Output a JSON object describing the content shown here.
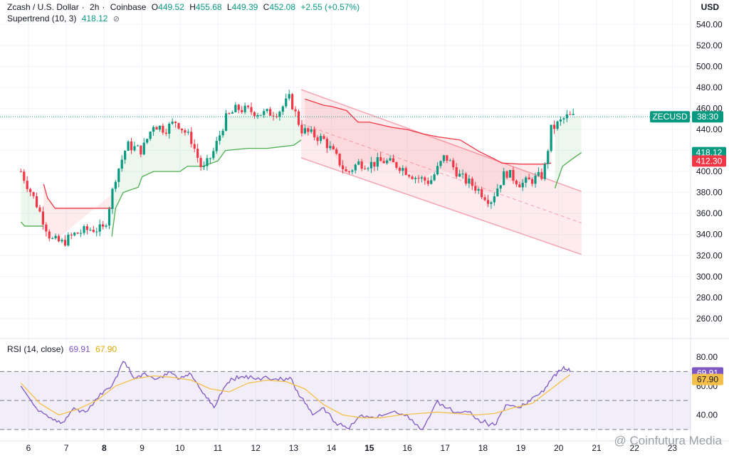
{
  "header": {
    "symbol": "Zcash / U.S. Dollar",
    "interval": "2h",
    "exchange": "Coinbase",
    "o_label": "O",
    "o": "449.52",
    "h_label": "H",
    "h": "455.68",
    "l_label": "L",
    "l": "449.39",
    "c_label": "C",
    "c": "452.08",
    "change": "+2.55 (+0.57%)",
    "currency": "USD"
  },
  "supertrend": {
    "label": "Supertrend (10, 3)",
    "value": "418.12",
    "eye_icon": "eye-off-icon"
  },
  "rsi": {
    "label": "RSI (14, close)",
    "value": "69.91",
    "ma": "67.90"
  },
  "badges": {
    "symbol_tag": "ZECUSD",
    "countdown": "38:30",
    "price_color": "#089981",
    "supertrend": "418.12",
    "supertrend_red": "412.30",
    "rsi_value": "69.91",
    "rsi_ma": "67.90"
  },
  "watermark": "@ Coinfutura Media",
  "colors": {
    "up": "#089981",
    "down": "#f23645",
    "supertrend_up": "#4caf50",
    "supertrend_down": "#f23645",
    "channel": "#f7a3b1",
    "rsi": "#7e57c2",
    "rsi_ma": "#f5c04a"
  },
  "chart_data": [
    {
      "type": "candlestick",
      "title": "Zcash / U.S. Dollar · 2h · Coinbase",
      "x_ticks": [
        "6",
        "7",
        "8",
        "9",
        "10",
        "11",
        "12",
        "13",
        "14",
        "15",
        "16",
        "17",
        "18",
        "19",
        "20",
        "21",
        "22",
        "23"
      ],
      "x_ticks_bold": [
        "8",
        "15"
      ],
      "y_ticks": [
        260,
        280,
        300,
        320,
        340,
        360,
        380,
        400,
        420,
        440,
        460,
        480,
        500,
        520,
        540
      ],
      "y_tick_labels": [
        "260.00",
        "280.00",
        "300.00",
        "320.00",
        "340.00",
        "360.00",
        "380.00",
        "400.00",
        "420.00",
        "440.00",
        "460.00",
        "480.00",
        "500.00",
        "520.00",
        "540.00"
      ],
      "ylim": [
        245,
        543
      ],
      "current_price": 452.08,
      "keypoints": [
        [
          5.8,
          400
        ],
        [
          6.2,
          370
        ],
        [
          6.6,
          335
        ],
        [
          6.9,
          332
        ],
        [
          7.2,
          340
        ],
        [
          7.6,
          345
        ],
        [
          8.0,
          345
        ],
        [
          8.3,
          395
        ],
        [
          8.6,
          425
        ],
        [
          9.0,
          420
        ],
        [
          9.3,
          445
        ],
        [
          9.6,
          440
        ],
        [
          9.9,
          448
        ],
        [
          10.3,
          430
        ],
        [
          10.6,
          400
        ],
        [
          10.9,
          420
        ],
        [
          11.2,
          450
        ],
        [
          11.5,
          460
        ],
        [
          11.8,
          458
        ],
        [
          12.2,
          455
        ],
        [
          12.6,
          457
        ],
        [
          12.9,
          470
        ],
        [
          13.2,
          440
        ],
        [
          13.5,
          435
        ],
        [
          13.8,
          430
        ],
        [
          14.1,
          415
        ],
        [
          14.4,
          398
        ],
        [
          14.7,
          408
        ],
        [
          15.0,
          407
        ],
        [
          15.4,
          410
        ],
        [
          15.8,
          405
        ],
        [
          16.2,
          395
        ],
        [
          16.6,
          390
        ],
        [
          17.0,
          415
        ],
        [
          17.4,
          395
        ],
        [
          17.8,
          385
        ],
        [
          18.2,
          372
        ],
        [
          18.6,
          400
        ],
        [
          19.0,
          388
        ],
        [
          19.3,
          392
        ],
        [
          19.6,
          397
        ],
        [
          19.8,
          440
        ],
        [
          20.2,
          452
        ],
        [
          20.4,
          452
        ]
      ],
      "supertrend": [
        {
          "trend": "up",
          "points": [
            [
              5.8,
              352
            ],
            [
              5.9,
              348
            ],
            [
              6.0,
              348
            ],
            [
              6.4,
              348
            ]
          ]
        },
        {
          "trend": "down",
          "points": [
            [
              6.4,
              388
            ],
            [
              6.5,
              375
            ],
            [
              6.7,
              365
            ],
            [
              8.2,
              365
            ]
          ]
        },
        {
          "trend": "up",
          "points": [
            [
              8.2,
              338
            ],
            [
              8.3,
              365
            ],
            [
              8.5,
              380
            ],
            [
              8.9,
              385
            ],
            [
              9.0,
              395
            ],
            [
              9.3,
              400
            ],
            [
              10.0,
              400
            ],
            [
              10.2,
              405
            ],
            [
              10.6,
              405
            ],
            [
              11.0,
              410
            ],
            [
              11.2,
              420
            ],
            [
              11.8,
              422
            ],
            [
              12.3,
              422
            ],
            [
              13.0,
              425
            ],
            [
              13.2,
              430
            ]
          ]
        },
        {
          "trend": "down",
          "points": [
            [
              13.3,
              469
            ],
            [
              13.8,
              463
            ],
            [
              14.0,
              462
            ],
            [
              14.4,
              458
            ],
            [
              14.7,
              447
            ],
            [
              15.0,
              447
            ],
            [
              15.6,
              442
            ],
            [
              16.0,
              440
            ],
            [
              16.4,
              436
            ],
            [
              16.8,
              433
            ],
            [
              17.4,
              430
            ],
            [
              17.9,
              419
            ],
            [
              18.3,
              412
            ],
            [
              18.5,
              408
            ],
            [
              19.0,
              407
            ],
            [
              19.6,
              407
            ],
            [
              19.8,
              408
            ]
          ]
        },
        {
          "trend": "up",
          "points": [
            [
              19.9,
              384
            ],
            [
              20.1,
              405
            ],
            [
              20.4,
              413
            ],
            [
              20.6,
              418
            ]
          ]
        }
      ],
      "channel": {
        "start": [
          13.2,
          478
        ],
        "end": [
          20.6,
          381
        ],
        "lower_start": [
          13.2,
          413
        ],
        "lower_end": [
          20.6,
          321
        ],
        "mid_end": [
          20.6,
          351
        ]
      },
      "x_units": "day of month"
    },
    {
      "type": "line",
      "title": "RSI (14, close)",
      "ylim": [
        26,
        82
      ],
      "y_ticks": [
        40,
        60,
        80
      ],
      "y_tick_labels": [
        "40.00",
        "60.00",
        "80.00"
      ],
      "band": [
        30,
        70
      ],
      "midline": 50,
      "series": [
        {
          "name": "RSI",
          "points": [
            [
              5.8,
              60
            ],
            [
              6.2,
              45
            ],
            [
              6.6,
              38
            ],
            [
              6.9,
              35
            ],
            [
              7.2,
              45
            ],
            [
              7.5,
              42
            ],
            [
              7.9,
              55
            ],
            [
              8.2,
              60
            ],
            [
              8.5,
              77
            ],
            [
              8.8,
              65
            ],
            [
              9.0,
              68
            ],
            [
              9.4,
              65
            ],
            [
              9.7,
              70
            ],
            [
              10.0,
              65
            ],
            [
              10.3,
              68
            ],
            [
              10.6,
              55
            ],
            [
              10.9,
              45
            ],
            [
              11.2,
              60
            ],
            [
              11.5,
              67
            ],
            [
              11.8,
              65
            ],
            [
              12.2,
              66
            ],
            [
              12.6,
              64
            ],
            [
              12.9,
              66
            ],
            [
              13.2,
              52
            ],
            [
              13.5,
              40
            ],
            [
              13.8,
              45
            ],
            [
              14.1,
              35
            ],
            [
              14.4,
              31
            ],
            [
              14.8,
              40
            ],
            [
              15.2,
              38
            ],
            [
              15.6,
              42
            ],
            [
              16.0,
              40
            ],
            [
              16.4,
              30
            ],
            [
              16.8,
              50
            ],
            [
              17.2,
              42
            ],
            [
              17.6,
              42
            ],
            [
              18.0,
              35
            ],
            [
              18.3,
              33
            ],
            [
              18.6,
              47
            ],
            [
              19.0,
              45
            ],
            [
              19.3,
              52
            ],
            [
              19.6,
              56
            ],
            [
              19.9,
              68
            ],
            [
              20.1,
              72
            ],
            [
              20.3,
              69.91
            ]
          ]
        },
        {
          "name": "MA",
          "points": [
            [
              5.8,
              62
            ],
            [
              6.3,
              48
            ],
            [
              6.8,
              40
            ],
            [
              7.3,
              44
            ],
            [
              7.8,
              50
            ],
            [
              8.3,
              60
            ],
            [
              8.8,
              65
            ],
            [
              9.3,
              67
            ],
            [
              9.8,
              66
            ],
            [
              10.3,
              64
            ],
            [
              10.8,
              58
            ],
            [
              11.3,
              56
            ],
            [
              11.8,
              62
            ],
            [
              12.3,
              64
            ],
            [
              12.8,
              63
            ],
            [
              13.3,
              58
            ],
            [
              13.8,
              47
            ],
            [
              14.3,
              40
            ],
            [
              14.8,
              38
            ],
            [
              15.3,
              38
            ],
            [
              15.8,
              40
            ],
            [
              16.3,
              41
            ],
            [
              16.8,
              42
            ],
            [
              17.3,
              41
            ],
            [
              17.8,
              40
            ],
            [
              18.3,
              41
            ],
            [
              18.8,
              45
            ],
            [
              19.3,
              48
            ],
            [
              19.8,
              58
            ],
            [
              20.3,
              67.9
            ]
          ]
        }
      ]
    }
  ]
}
